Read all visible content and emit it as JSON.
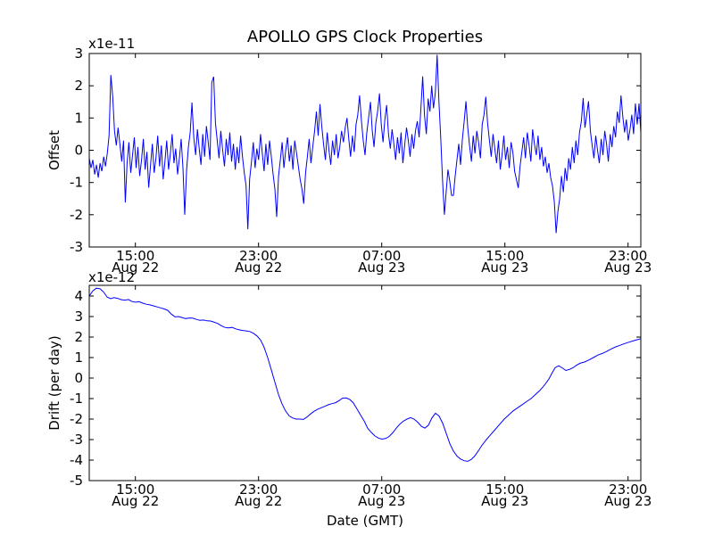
{
  "figure": {
    "title": "APOLLO GPS Clock Properties",
    "xlabel": "Date (GMT)",
    "background": "#ffffff",
    "line_color": "#0000ff",
    "frame_color": "#000000",
    "text_color": "#000000"
  },
  "chart_data": [
    {
      "type": "line",
      "name": "gps-clock-offset",
      "ylabel": "Offset",
      "offset_scale_label": "x1e-11",
      "ylim": [
        -3,
        3
      ],
      "yticks": [
        3,
        2,
        1,
        0,
        -1,
        -2,
        -3
      ],
      "xlim_hours": [
        0,
        35.83
      ],
      "xticks": [
        {
          "hour": 3,
          "time": "15:00",
          "date": "Aug 22"
        },
        {
          "hour": 11,
          "time": "23:00",
          "date": "Aug 22"
        },
        {
          "hour": 19,
          "time": "07:00",
          "date": "Aug 23"
        },
        {
          "hour": 27,
          "time": "15:00",
          "date": "Aug 23"
        },
        {
          "hour": 35,
          "time": "23:00",
          "date": "Aug 23"
        }
      ],
      "grid": false,
      "values": [
        -0.25,
        -0.55,
        -0.3,
        -0.75,
        -0.45,
        -0.85,
        -0.4,
        -0.65,
        -0.2,
        -0.5,
        -0.1,
        0.45,
        2.33,
        1.66,
        0.6,
        0.15,
        0.7,
        0.2,
        -0.35,
        0.3,
        -1.62,
        -0.4,
        0.25,
        -0.7,
        -0.15,
        0.4,
        -0.55,
        0.1,
        -0.8,
        -0.3,
        0.35,
        -0.6,
        -0.05,
        -1.16,
        -0.45,
        0.2,
        -0.7,
        -0.25,
        0.45,
        -0.5,
        0.15,
        -0.9,
        -0.35,
        0.3,
        -0.6,
        -0.1,
        0.5,
        -0.4,
        0.05,
        -0.75,
        -0.25,
        0.35,
        -0.55,
        -2.0,
        -0.6,
        0.1,
        0.55,
        1.48,
        0.4,
        -0.15,
        0.65,
        0.05,
        -0.45,
        0.5,
        -0.2,
        0.75,
        0.25,
        -0.3,
        2.1,
        2.28,
        0.85,
        0.3,
        -0.25,
        0.6,
        0.0,
        -0.5,
        0.35,
        -0.15,
        0.55,
        -0.35,
        0.2,
        -0.6,
        0.1,
        -0.4,
        0.45,
        -0.2,
        -0.7,
        -1.1,
        -2.45,
        -0.9,
        -0.35,
        0.25,
        -0.55,
        0.05,
        -0.3,
        0.5,
        -0.1,
        -0.65,
        0.2,
        -0.45,
        0.3,
        -0.2,
        -0.75,
        -1.2,
        -2.07,
        -0.8,
        -0.3,
        0.25,
        -0.55,
        0.0,
        0.4,
        -0.35,
        0.15,
        -0.6,
        0.3,
        -0.1,
        -0.5,
        -0.9,
        -1.2,
        -1.66,
        -0.7,
        -0.2,
        0.35,
        -0.4,
        0.1,
        0.6,
        1.2,
        0.45,
        1.43,
        0.75,
        0.2,
        -0.3,
        0.55,
        0.0,
        -0.45,
        0.3,
        -0.15,
        0.5,
        -0.25,
        0.1,
        0.6,
        0.25,
        0.7,
        1.0,
        0.35,
        -0.2,
        0.45,
        -0.05,
        0.8,
        1.1,
        1.7,
        0.9,
        0.3,
        -0.15,
        0.55,
        1.0,
        1.5,
        0.6,
        0.1,
        0.85,
        1.2,
        1.76,
        0.8,
        0.25,
        0.95,
        1.4,
        0.5,
        0.05,
        0.65,
        0.2,
        -0.3,
        0.4,
        -0.1,
        0.55,
        -0.4,
        0.15,
        0.7,
        0.3,
        -0.2,
        0.5,
        0.05,
        0.6,
        0.9,
        0.4,
        1.3,
        2.29,
        1.1,
        0.5,
        1.6,
        1.2,
        2.0,
        1.3,
        1.8,
        2.96,
        1.5,
        0.4,
        -0.9,
        -2.0,
        -1.3,
        -0.6,
        -0.95,
        -1.4,
        -1.4,
        -0.8,
        -0.3,
        0.2,
        -0.45,
        0.35,
        0.9,
        1.52,
        0.7,
        0.15,
        -0.35,
        0.45,
        -0.1,
        0.6,
        0.25,
        -0.25,
        0.8,
        1.1,
        1.66,
        0.85,
        0.3,
        -0.2,
        0.5,
        0.05,
        -0.4,
        0.3,
        -0.6,
        -0.15,
        0.45,
        -0.3,
        0.1,
        -0.55,
        0.25,
        -0.05,
        -0.65,
        -0.9,
        -1.17,
        -0.5,
        -0.05,
        0.4,
        -0.25,
        0.55,
        0.15,
        -0.35,
        0.65,
        0.2,
        -0.15,
        0.45,
        -0.3,
        0.1,
        -0.5,
        -0.2,
        -0.7,
        -0.4,
        -0.85,
        -1.1,
        -1.6,
        -2.57,
        -1.9,
        -1.5,
        -0.8,
        -1.3,
        -0.55,
        -0.95,
        -0.25,
        -0.6,
        0.1,
        -0.4,
        0.3,
        -0.15,
        0.55,
        0.9,
        1.62,
        0.7,
        1.1,
        1.52,
        0.6,
        0.15,
        -0.25,
        0.45,
        0.0,
        -0.4,
        0.35,
        -0.15,
        0.6,
        0.2,
        -0.35,
        0.5,
        0.1,
        0.75,
        0.4,
        1.2,
        0.85,
        1.7,
        1.05,
        0.55,
        0.95,
        0.3,
        0.65,
        1.1,
        0.5,
        1.45,
        0.8,
        1.45,
        0.55
      ]
    },
    {
      "type": "line",
      "name": "gps-clock-drift",
      "ylabel": "Drift (per day)",
      "offset_scale_label": "x1e-12",
      "ylim": [
        -5,
        4.52
      ],
      "yticks": [
        4,
        3,
        2,
        1,
        0,
        -1,
        -2,
        -3,
        -4,
        -5
      ],
      "xlim_hours": [
        0,
        35.83
      ],
      "xticks": [
        {
          "hour": 3,
          "time": "15:00",
          "date": "Aug 22"
        },
        {
          "hour": 11,
          "time": "23:00",
          "date": "Aug 22"
        },
        {
          "hour": 19,
          "time": "07:00",
          "date": "Aug 23"
        },
        {
          "hour": 27,
          "time": "15:00",
          "date": "Aug 23"
        },
        {
          "hour": 35,
          "time": "23:00",
          "date": "Aug 23"
        }
      ],
      "grid": false,
      "points": [
        [
          0,
          4.0
        ],
        [
          0.23,
          4.25
        ],
        [
          0.46,
          4.38
        ],
        [
          0.7,
          4.35
        ],
        [
          0.93,
          4.2
        ],
        [
          1.16,
          3.95
        ],
        [
          1.39,
          3.87
        ],
        [
          1.62,
          3.92
        ],
        [
          1.86,
          3.88
        ],
        [
          2.09,
          3.82
        ],
        [
          2.32,
          3.8
        ],
        [
          2.55,
          3.83
        ],
        [
          2.78,
          3.73
        ],
        [
          3.01,
          3.7
        ],
        [
          3.25,
          3.72
        ],
        [
          3.48,
          3.65
        ],
        [
          3.71,
          3.6
        ],
        [
          3.94,
          3.57
        ],
        [
          4.17,
          3.52
        ],
        [
          4.41,
          3.47
        ],
        [
          4.64,
          3.42
        ],
        [
          4.87,
          3.37
        ],
        [
          5.1,
          3.3
        ],
        [
          5.33,
          3.12
        ],
        [
          5.57,
          2.98
        ],
        [
          5.8,
          3.0
        ],
        [
          6.03,
          2.95
        ],
        [
          6.26,
          2.9
        ],
        [
          6.49,
          2.93
        ],
        [
          6.72,
          2.92
        ],
        [
          6.96,
          2.86
        ],
        [
          7.19,
          2.81
        ],
        [
          7.42,
          2.83
        ],
        [
          7.65,
          2.79
        ],
        [
          7.88,
          2.78
        ],
        [
          8.12,
          2.72
        ],
        [
          8.35,
          2.66
        ],
        [
          8.58,
          2.55
        ],
        [
          8.81,
          2.47
        ],
        [
          9.04,
          2.44
        ],
        [
          9.28,
          2.47
        ],
        [
          9.51,
          2.4
        ],
        [
          9.74,
          2.35
        ],
        [
          9.97,
          2.32
        ],
        [
          10.2,
          2.3
        ],
        [
          10.43,
          2.27
        ],
        [
          10.67,
          2.18
        ],
        [
          10.9,
          2.05
        ],
        [
          11.13,
          1.85
        ],
        [
          11.36,
          1.5
        ],
        [
          11.59,
          1.0
        ],
        [
          11.83,
          0.4
        ],
        [
          12.06,
          -0.2
        ],
        [
          12.29,
          -0.8
        ],
        [
          12.52,
          -1.25
        ],
        [
          12.75,
          -1.6
        ],
        [
          12.99,
          -1.85
        ],
        [
          13.22,
          -1.95
        ],
        [
          13.45,
          -2.0
        ],
        [
          13.68,
          -2.0
        ],
        [
          13.91,
          -2.02
        ],
        [
          14.14,
          -1.9
        ],
        [
          14.38,
          -1.75
        ],
        [
          14.61,
          -1.62
        ],
        [
          14.84,
          -1.52
        ],
        [
          15.07,
          -1.45
        ],
        [
          15.3,
          -1.38
        ],
        [
          15.54,
          -1.3
        ],
        [
          15.77,
          -1.25
        ],
        [
          16.0,
          -1.2
        ],
        [
          16.23,
          -1.1
        ],
        [
          16.46,
          -0.98
        ],
        [
          16.7,
          -0.97
        ],
        [
          16.93,
          -1.05
        ],
        [
          17.16,
          -1.22
        ],
        [
          17.39,
          -1.5
        ],
        [
          17.62,
          -1.8
        ],
        [
          17.86,
          -2.1
        ],
        [
          18.09,
          -2.45
        ],
        [
          18.32,
          -2.65
        ],
        [
          18.55,
          -2.82
        ],
        [
          18.78,
          -2.92
        ],
        [
          19.01,
          -2.98
        ],
        [
          19.25,
          -2.95
        ],
        [
          19.48,
          -2.85
        ],
        [
          19.71,
          -2.67
        ],
        [
          19.94,
          -2.45
        ],
        [
          20.17,
          -2.25
        ],
        [
          20.41,
          -2.1
        ],
        [
          20.64,
          -2.0
        ],
        [
          20.87,
          -1.93
        ],
        [
          21.1,
          -2.0
        ],
        [
          21.33,
          -2.15
        ],
        [
          21.57,
          -2.35
        ],
        [
          21.8,
          -2.44
        ],
        [
          22.03,
          -2.3
        ],
        [
          22.26,
          -1.95
        ],
        [
          22.49,
          -1.72
        ],
        [
          22.72,
          -1.85
        ],
        [
          22.96,
          -2.2
        ],
        [
          23.19,
          -2.7
        ],
        [
          23.42,
          -3.2
        ],
        [
          23.65,
          -3.55
        ],
        [
          23.88,
          -3.8
        ],
        [
          24.12,
          -3.95
        ],
        [
          24.35,
          -4.03
        ],
        [
          24.58,
          -4.06
        ],
        [
          24.81,
          -3.97
        ],
        [
          25.04,
          -3.8
        ],
        [
          25.28,
          -3.55
        ],
        [
          25.51,
          -3.28
        ],
        [
          25.8,
          -3.0
        ],
        [
          26.09,
          -2.75
        ],
        [
          26.38,
          -2.5
        ],
        [
          26.67,
          -2.25
        ],
        [
          26.96,
          -2.0
        ],
        [
          27.25,
          -1.8
        ],
        [
          27.54,
          -1.6
        ],
        [
          27.83,
          -1.45
        ],
        [
          28.12,
          -1.3
        ],
        [
          28.41,
          -1.15
        ],
        [
          28.7,
          -1.0
        ],
        [
          28.99,
          -0.8
        ],
        [
          29.28,
          -0.6
        ],
        [
          29.57,
          -0.35
        ],
        [
          29.86,
          -0.05
        ],
        [
          30.03,
          0.2
        ],
        [
          30.26,
          0.5
        ],
        [
          30.49,
          0.6
        ],
        [
          30.72,
          0.5
        ],
        [
          30.96,
          0.37
        ],
        [
          31.19,
          0.42
        ],
        [
          31.42,
          0.5
        ],
        [
          31.65,
          0.62
        ],
        [
          31.88,
          0.72
        ],
        [
          32.17,
          0.78
        ],
        [
          32.46,
          0.88
        ],
        [
          32.75,
          1.0
        ],
        [
          33.04,
          1.12
        ],
        [
          33.33,
          1.2
        ],
        [
          33.62,
          1.3
        ],
        [
          33.91,
          1.42
        ],
        [
          34.2,
          1.52
        ],
        [
          34.49,
          1.6
        ],
        [
          34.78,
          1.68
        ],
        [
          35.07,
          1.75
        ],
        [
          35.36,
          1.82
        ],
        [
          35.59,
          1.87
        ],
        [
          35.83,
          1.92
        ]
      ]
    }
  ]
}
